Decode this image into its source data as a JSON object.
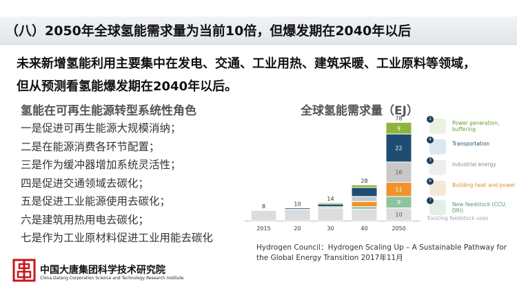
{
  "header": {
    "title": "（八）2050年全球氢能需求量为当前10倍，但爆发期在2040年以后"
  },
  "summary": {
    "line1": "未来新增氢能利用主要集中在发电、交通、工业用热、建筑采暖、工业原料等领域，",
    "line2": "但从预测看氢能爆发期在2040年以后。"
  },
  "roles": {
    "heading": "氢能在可再生能源转型系统性角色",
    "items": [
      "一是促进可再生能源大规模消纳；",
      "二是在能源消费各环节配置；",
      "三是作为缓冲器增加系统灵活性；",
      "四是促进交通领域去碳化；",
      "五是促进工业能源使用去碳化；",
      "六是建筑用热用电去碳化；",
      "七是作为工业原材料促进工业用能去碳化"
    ]
  },
  "chart_data": {
    "type": "bar",
    "title": "全球氢能需求量（EJ）",
    "categories": [
      "2015",
      "20",
      "30",
      "40",
      "2050"
    ],
    "totals": [
      8,
      10,
      14,
      28,
      78
    ],
    "series": [
      {
        "name": "Existing feedstock uses",
        "color": "#dcdcdc",
        "values": [
          8,
          9,
          10,
          9,
          10
        ]
      },
      {
        "name": "New feedstock (CCU, DRI)",
        "color": "#8ec3a0",
        "values": [
          0,
          0,
          1,
          2,
          9
        ]
      },
      {
        "name": "Building heat and power",
        "color": "#f0922e",
        "values": [
          0,
          0,
          0,
          4,
          11
        ]
      },
      {
        "name": "Industrial energy",
        "color": "#c8c8c8",
        "values": [
          0,
          0,
          0,
          4,
          16
        ]
      },
      {
        "name": "Transportation",
        "color": "#1d4e72",
        "values": [
          0,
          1,
          2,
          7,
          22
        ]
      },
      {
        "name": "Power generation, buffering",
        "color": "#8cb43c",
        "values": [
          0,
          0,
          1,
          2,
          9
        ]
      }
    ],
    "segment_labels_2050": [
      "10",
      "9",
      "11",
      "16",
      "22",
      "9"
    ],
    "legend_placement": "right",
    "legend_extra": "Existing feedstock uses"
  },
  "legend": {
    "items": [
      {
        "num": "1",
        "label": "Power generation, buffering",
        "text_color": "#6a9a2c",
        "icon_color": "#e9f1df"
      },
      {
        "num": "4",
        "label": "Transportation",
        "text_color": "#1d4e72",
        "icon_color": "#dde7ef"
      },
      {
        "num": "3",
        "label": "Industrial energy",
        "text_color": "#8a8a8a",
        "icon_color": "#eeeeee"
      },
      {
        "num": "6",
        "label": "Building heat and power",
        "text_color": "#e08a2a",
        "icon_color": "#f6e8d8"
      },
      {
        "num": "7",
        "label": "New feedstock (CCU, DRI)",
        "text_color": "#4e9a6a",
        "icon_color": "#e2efe6"
      }
    ],
    "extra": "Existing feedstock uses"
  },
  "source": {
    "text": "Hydrogen Council：Hydrogen Scaling Up – A Sustainable Pathway for the Global Energy Transition 2017年11月"
  },
  "footer": {
    "org_cn": "中国大唐集团科学技术研究院",
    "org_en": "China Datang Corporation Science and Technology Research Institute",
    "logo_color": "#c8161d"
  }
}
